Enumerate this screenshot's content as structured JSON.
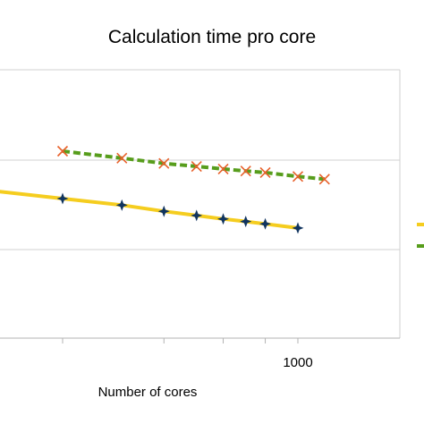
{
  "chart_data": {
    "type": "line",
    "title": "Calculation time pro core",
    "xlabel": "Number of cores",
    "ylabel": "",
    "x_scale": "log",
    "y_scale": "log",
    "grid": true,
    "legend": "right (cut off)",
    "xlim": [
      60,
      4000
    ],
    "x_tick_labels": [
      {
        "value": 1000,
        "label": "1000"
      }
    ],
    "x_minor_ticks": [
      200,
      400,
      600,
      800
    ],
    "series": [
      {
        "color": "#f5cd1f",
        "marker": "star4",
        "marker_color": "#10345f",
        "line_style": "solid",
        "points": [
          {
            "x": 200,
            "y": 1.0
          },
          {
            "x": 300,
            "y": 0.82
          },
          {
            "x": 400,
            "y": 0.68
          },
          {
            "x": 500,
            "y": 0.6
          },
          {
            "x": 600,
            "y": 0.54
          },
          {
            "x": 700,
            "y": 0.5
          },
          {
            "x": 800,
            "y": 0.465
          },
          {
            "x": 1000,
            "y": 0.41
          }
        ],
        "extends_left_to_x": 60
      },
      {
        "color": "#579d1c",
        "marker": "x",
        "marker_color": "#e8602a",
        "line_style": "dashed",
        "points": [
          {
            "x": 200,
            "y": 4.2
          },
          {
            "x": 300,
            "y": 3.4
          },
          {
            "x": 400,
            "y": 2.9
          },
          {
            "x": 500,
            "y": 2.65
          },
          {
            "x": 600,
            "y": 2.45
          },
          {
            "x": 700,
            "y": 2.3
          },
          {
            "x": 800,
            "y": 2.2
          },
          {
            "x": 1000,
            "y": 1.95
          },
          {
            "x": 1200,
            "y": 1.8
          }
        ]
      }
    ]
  }
}
